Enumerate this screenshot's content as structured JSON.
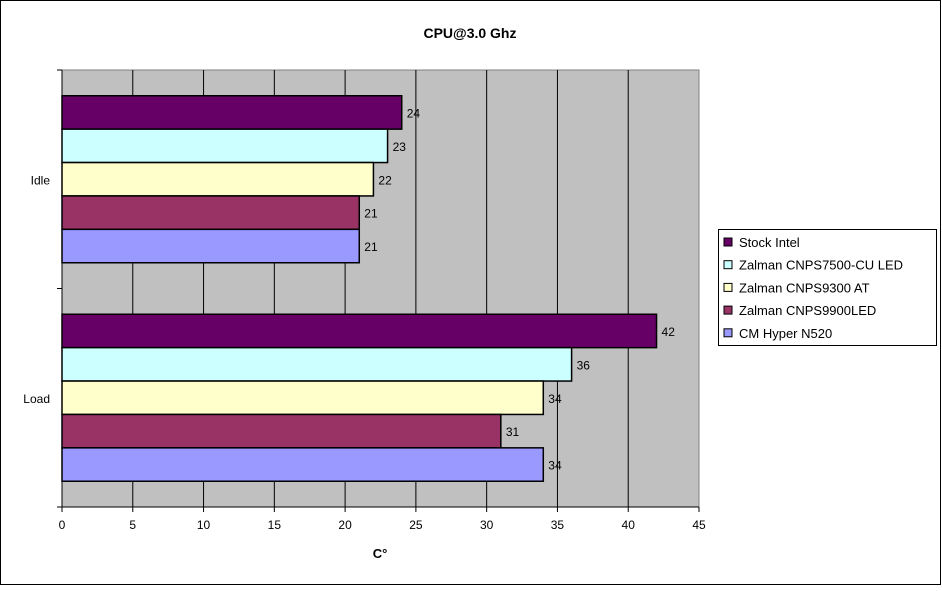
{
  "chart_data": {
    "type": "bar",
    "orientation": "horizontal",
    "title": "CPU@3.0 Ghz",
    "xlabel": "C°",
    "ylabel": "",
    "xlim": [
      0,
      45
    ],
    "x_ticks": [
      "0",
      "5",
      "10",
      "15",
      "20",
      "25",
      "30",
      "35",
      "40",
      "45"
    ],
    "grid": true,
    "legend_position": "right",
    "categories": [
      "Idle",
      "Load"
    ],
    "series": [
      {
        "name": "Stock Intel",
        "color": "#660066",
        "values": [
          24,
          42
        ]
      },
      {
        "name": "Zalman CNPS7500-CU LED",
        "color": "#CCFFFF",
        "values": [
          23,
          36
        ]
      },
      {
        "name": "Zalman CNPS9300 AT",
        "color": "#FFFFCC",
        "values": [
          22,
          34
        ]
      },
      {
        "name": "Zalman CNPS9900LED",
        "color": "#993366",
        "values": [
          21,
          31
        ]
      },
      {
        "name": "CM Hyper N520",
        "color": "#9999FF",
        "values": [
          21,
          34
        ]
      }
    ],
    "plot_background": "#C0C0C0"
  }
}
